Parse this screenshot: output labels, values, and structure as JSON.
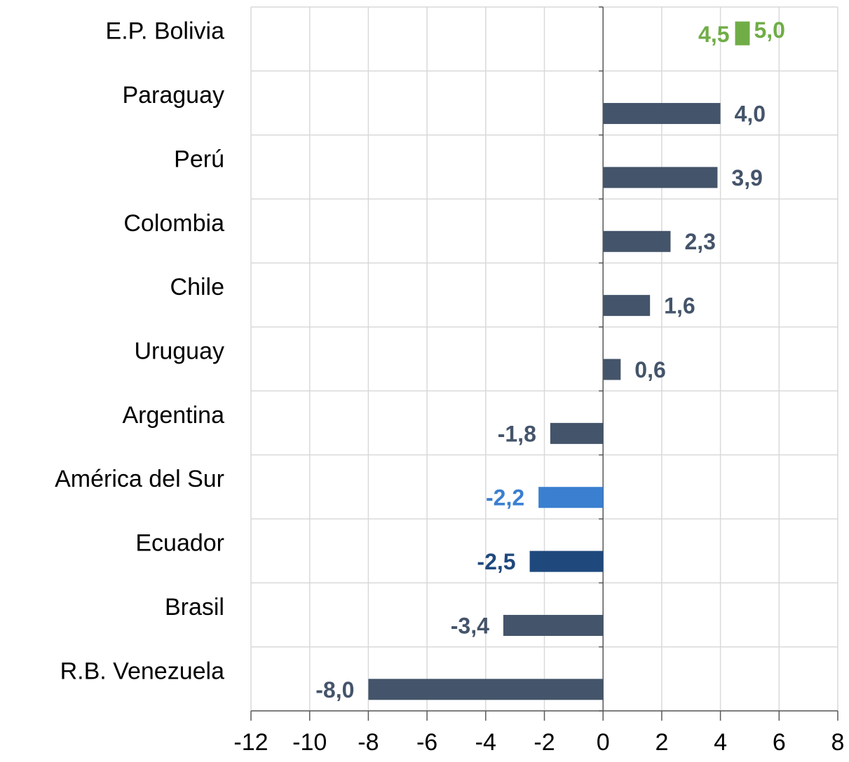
{
  "chart_data": {
    "type": "bar",
    "orientation": "horizontal",
    "categories": [
      "E.P. Bolivia",
      "Paraguay",
      "Perú",
      "Colombia",
      "Chile",
      "Uruguay",
      "Argentina",
      "América del Sur",
      "Ecuador",
      "Brasil",
      "R.B. Venezuela"
    ],
    "values": [
      null,
      4.0,
      3.9,
      2.3,
      1.6,
      0.6,
      -1.8,
      -2.2,
      -2.5,
      -3.4,
      -8.0
    ],
    "value_labels": [
      null,
      "4,0",
      "3,9",
      "2,3",
      "1,6",
      "0,6",
      "-1,8",
      "-2,2",
      "-2,5",
      "-3,4",
      "-8,0"
    ],
    "colors": [
      null,
      "#44546a",
      "#44546a",
      "#44546a",
      "#44546a",
      "#44546a",
      "#44546a",
      "#3a7fd0",
      "#1f497d",
      "#44546a",
      "#44546a"
    ],
    "range": {
      "category_index": 0,
      "low": 4.5,
      "high": 5.0,
      "low_label": "4,5",
      "high_label": "5,0",
      "color": "#70ad47"
    },
    "xlim": [
      -12,
      8
    ],
    "xticks": [
      -12,
      -10,
      -8,
      -6,
      -4,
      -2,
      0,
      2,
      4,
      6,
      8
    ],
    "grid": true
  }
}
